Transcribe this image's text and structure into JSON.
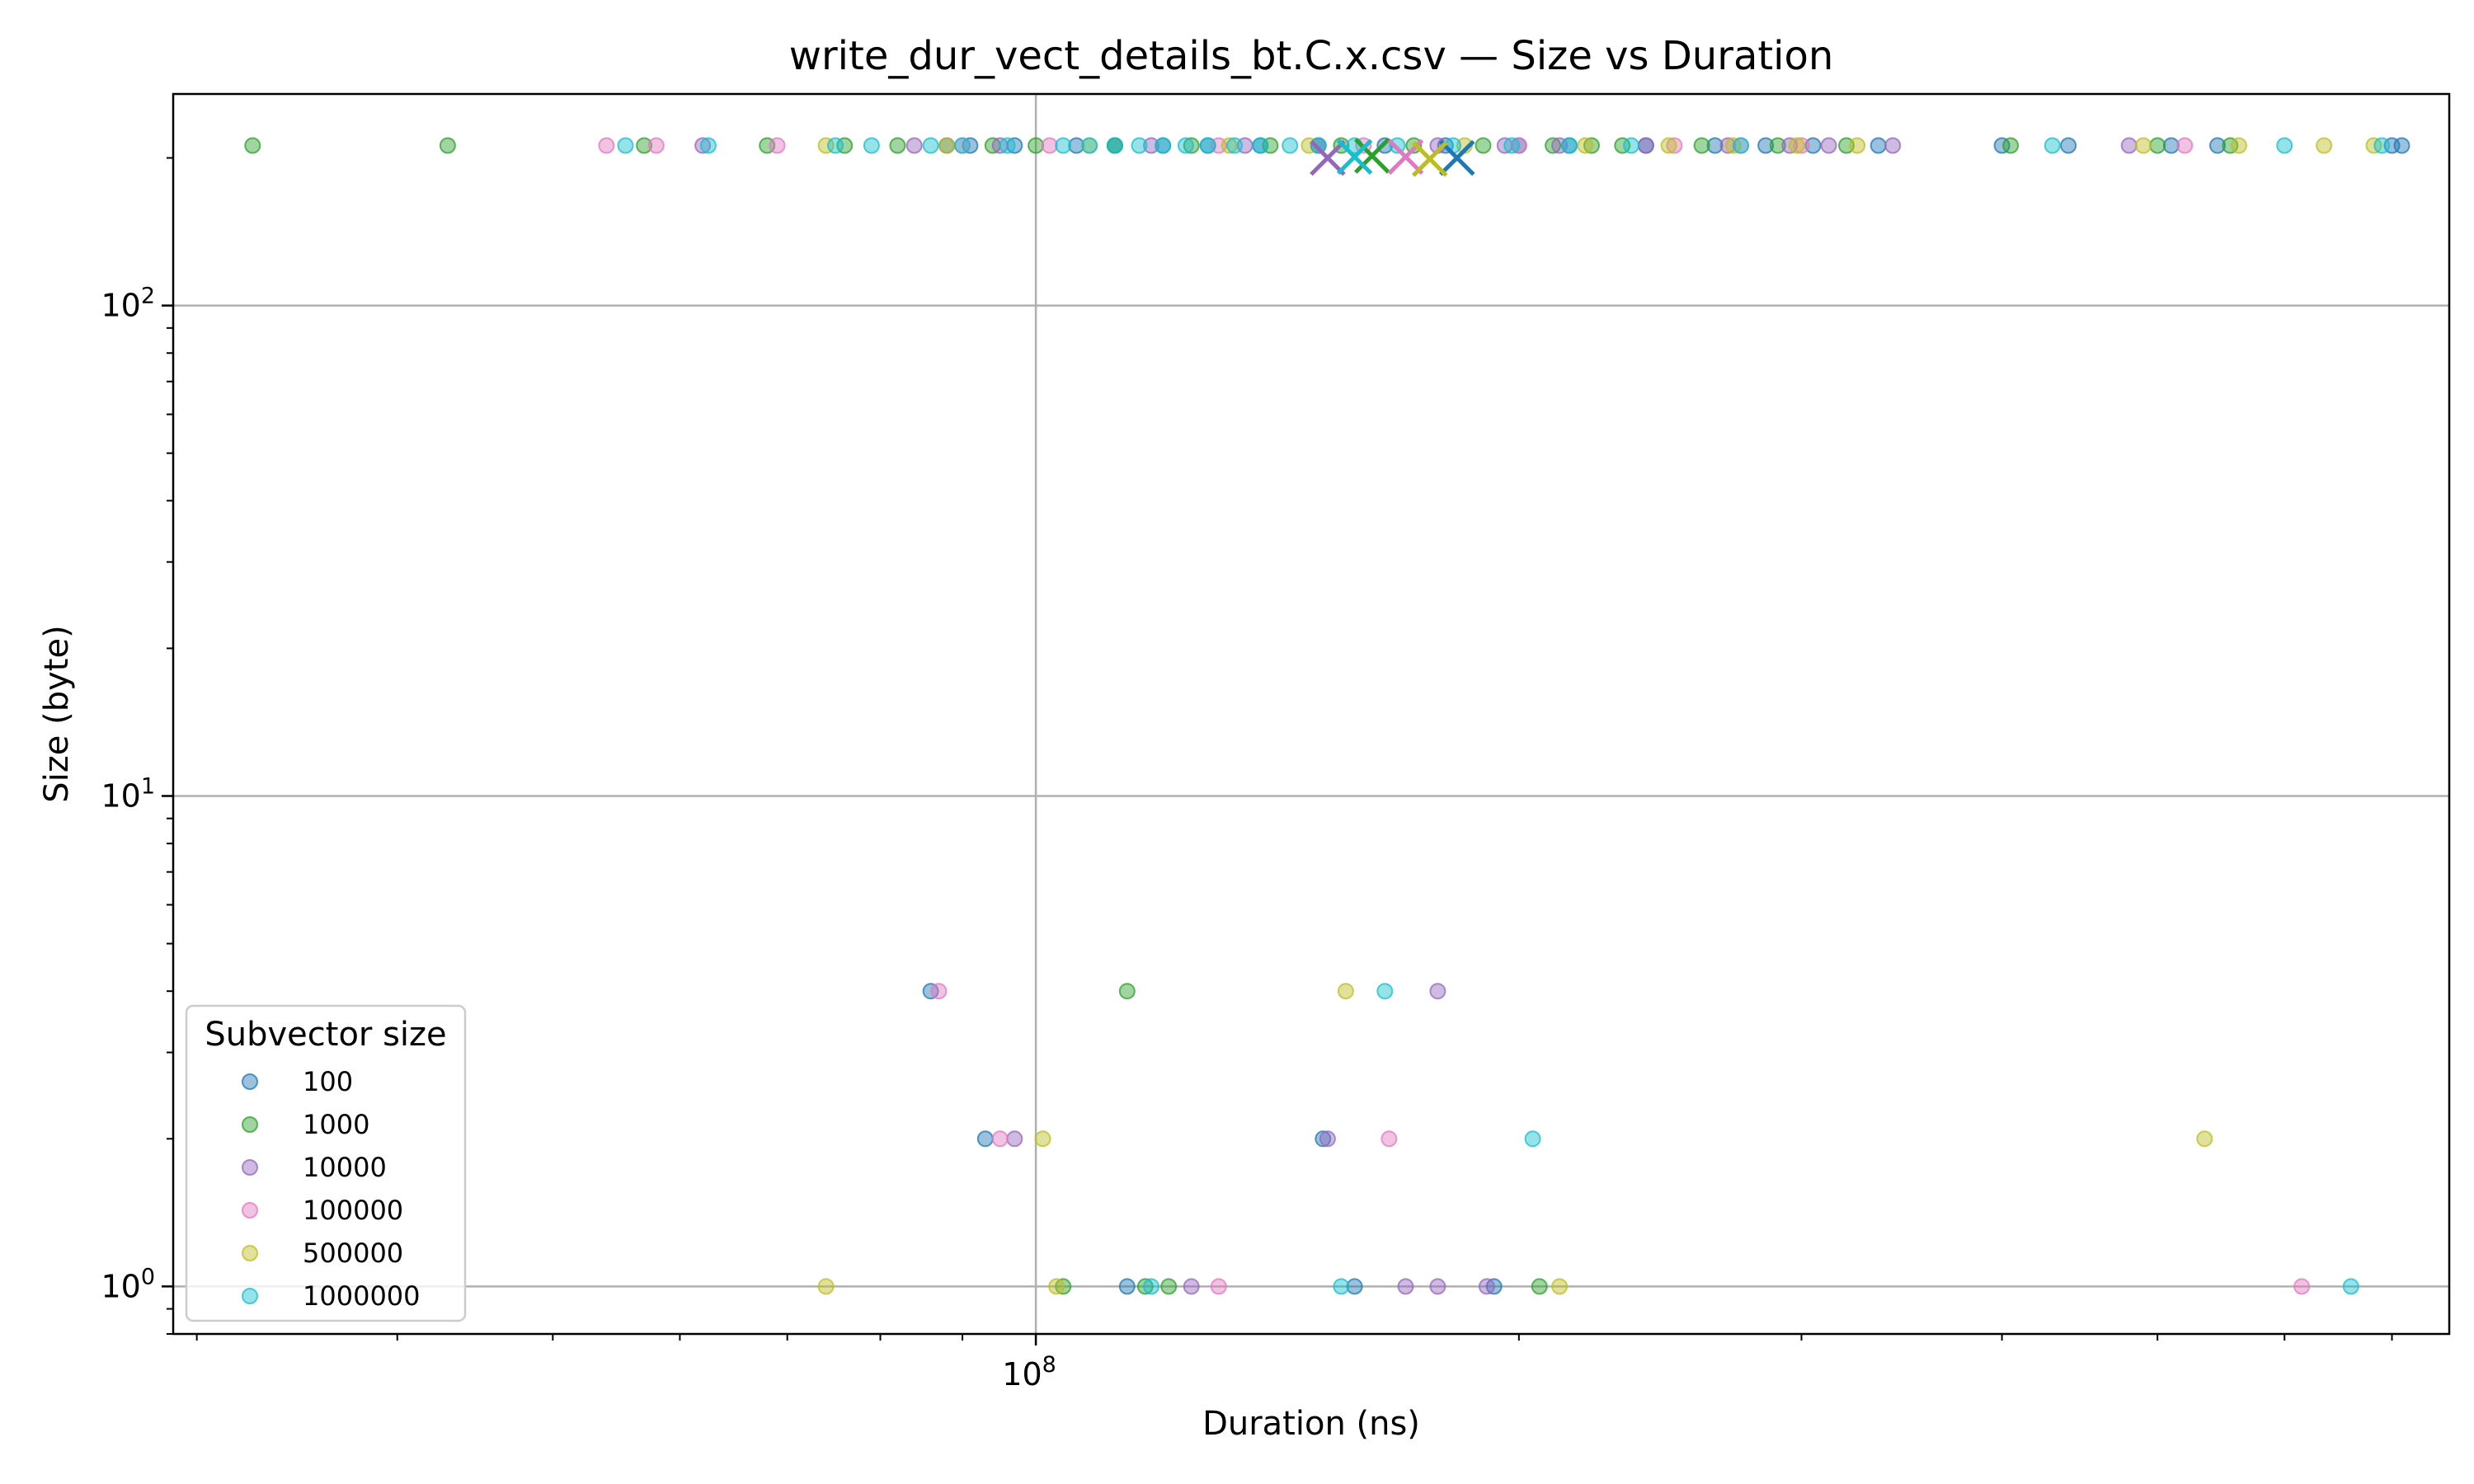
{
  "chart_data": {
    "type": "scatter",
    "title": "write_dur_vect_details_bt.C.x.csv — Size vs Duration",
    "xlabel": "Duration (ns)",
    "ylabel": "Size (byte)",
    "xscale": "log",
    "yscale": "log",
    "xlim": [
      29000000,
      760000000
    ],
    "ylim": [
      0.8,
      270
    ],
    "x_major_ticks": [
      {
        "value": 100000000,
        "base": "10",
        "exp": "8"
      }
    ],
    "y_major_ticks": [
      {
        "value": 1,
        "base": "10",
        "exp": "0"
      },
      {
        "value": 10,
        "base": "10",
        "exp": "1"
      },
      {
        "value": 100,
        "base": "10",
        "exp": "2"
      }
    ],
    "grid": true,
    "legend": {
      "title": "Subvector size",
      "placement": "lower-left"
    },
    "series": [
      {
        "name": "100",
        "color": "#1f77b4",
        "points": [
          [
            88000000,
            212
          ],
          [
            91000000,
            212
          ],
          [
            97000000,
            212
          ],
          [
            106000000,
            212
          ],
          [
            112000000,
            212
          ],
          [
            120000000,
            212
          ],
          [
            128000000,
            212
          ],
          [
            138000000,
            212
          ],
          [
            150000000,
            212
          ],
          [
            165000000,
            212
          ],
          [
            180000000,
            212
          ],
          [
            200000000,
            212
          ],
          [
            215000000,
            212
          ],
          [
            240000000,
            212
          ],
          [
            265000000,
            212
          ],
          [
            285000000,
            212
          ],
          [
            305000000,
            212
          ],
          [
            335000000,
            212
          ],
          [
            400000000,
            212
          ],
          [
            440000000,
            212
          ],
          [
            510000000,
            212
          ],
          [
            545000000,
            212
          ],
          [
            700000000,
            212
          ],
          [
            710000000,
            212
          ],
          [
            86000000,
            4
          ],
          [
            93000000,
            2
          ],
          [
            151000000,
            2
          ],
          [
            114000000,
            1
          ],
          [
            158000000,
            1
          ],
          [
            193000000,
            1
          ]
        ],
        "mean": [
          183000000,
          200
        ]
      },
      {
        "name": "1000",
        "color": "#2ca02c",
        "points": [
          [
            32500000,
            212
          ],
          [
            43000000,
            212
          ],
          [
            57000000,
            212
          ],
          [
            68000000,
            212
          ],
          [
            76000000,
            212
          ],
          [
            82000000,
            212
          ],
          [
            94000000,
            212
          ],
          [
            100000000,
            212
          ],
          [
            112000000,
            212
          ],
          [
            125000000,
            212
          ],
          [
            140000000,
            212
          ],
          [
            155000000,
            212
          ],
          [
            172000000,
            212
          ],
          [
            190000000,
            212
          ],
          [
            210000000,
            212
          ],
          [
            222000000,
            212
          ],
          [
            232000000,
            212
          ],
          [
            260000000,
            212
          ],
          [
            290000000,
            212
          ],
          [
            320000000,
            212
          ],
          [
            405000000,
            212
          ],
          [
            500000000,
            212
          ],
          [
            555000000,
            212
          ],
          [
            114000000,
            4
          ],
          [
            104000000,
            1
          ],
          [
            117000000,
            1
          ],
          [
            121000000,
            1
          ],
          [
            206000000,
            1
          ]
        ],
        "mean": [
          162000000,
          202
        ]
      },
      {
        "name": "10000",
        "color": "#9467bd",
        "points": [
          [
            62000000,
            212
          ],
          [
            84000000,
            212
          ],
          [
            95000000,
            212
          ],
          [
            118000000,
            212
          ],
          [
            135000000,
            212
          ],
          [
            150000000,
            212
          ],
          [
            178000000,
            212
          ],
          [
            196000000,
            212
          ],
          [
            212000000,
            212
          ],
          [
            240000000,
            212
          ],
          [
            270000000,
            212
          ],
          [
            295000000,
            212
          ],
          [
            312000000,
            212
          ],
          [
            342000000,
            212
          ],
          [
            480000000,
            212
          ],
          [
            178000000,
            4
          ],
          [
            97000000,
            2
          ],
          [
            152000000,
            2
          ],
          [
            125000000,
            1
          ],
          [
            170000000,
            1
          ],
          [
            178000000,
            1
          ],
          [
            191000000,
            1
          ]
        ],
        "mean": [
          152000000,
          200
        ]
      },
      {
        "name": "100000",
        "color": "#e377c2",
        "points": [
          [
            54000000,
            212
          ],
          [
            58000000,
            212
          ],
          [
            69000000,
            212
          ],
          [
            90000000,
            212
          ],
          [
            102000000,
            212
          ],
          [
            130000000,
            212
          ],
          [
            160000000,
            212
          ],
          [
            200000000,
            212
          ],
          [
            250000000,
            212
          ],
          [
            275000000,
            212
          ],
          [
            300000000,
            212
          ],
          [
            520000000,
            212
          ],
          [
            87000000,
            4
          ],
          [
            95000000,
            2
          ],
          [
            166000000,
            2
          ],
          [
            130000000,
            1
          ],
          [
            615000000,
            1
          ]
        ],
        "mean": [
          170000000,
          201
        ]
      },
      {
        "name": "500000",
        "color": "#bcbd22",
        "points": [
          [
            74000000,
            212
          ],
          [
            88000000,
            212
          ],
          [
            108000000,
            212
          ],
          [
            132000000,
            212
          ],
          [
            148000000,
            212
          ],
          [
            185000000,
            212
          ],
          [
            220000000,
            212
          ],
          [
            248000000,
            212
          ],
          [
            272000000,
            212
          ],
          [
            298000000,
            212
          ],
          [
            325000000,
            212
          ],
          [
            490000000,
            212
          ],
          [
            562000000,
            212
          ],
          [
            635000000,
            212
          ],
          [
            682000000,
            212
          ],
          [
            156000000,
            4
          ],
          [
            101000000,
            2
          ],
          [
            535000000,
            2
          ],
          [
            74000000,
            1
          ],
          [
            103000000,
            1
          ],
          [
            212000000,
            1
          ]
        ],
        "mean": [
          176000000,
          199
        ]
      },
      {
        "name": "1000000",
        "color": "#17becf",
        "points": [
          [
            55500000,
            212
          ],
          [
            62500000,
            212
          ],
          [
            75000000,
            212
          ],
          [
            79000000,
            212
          ],
          [
            86000000,
            212
          ],
          [
            90000000,
            212
          ],
          [
            96000000,
            212
          ],
          [
            104000000,
            212
          ],
          [
            108000000,
            212
          ],
          [
            112000000,
            212
          ],
          [
            116000000,
            212
          ],
          [
            120000000,
            212
          ],
          [
            124000000,
            212
          ],
          [
            128000000,
            212
          ],
          [
            133000000,
            212
          ],
          [
            138000000,
            212
          ],
          [
            144000000,
            212
          ],
          [
            150000000,
            212
          ],
          [
            158000000,
            212
          ],
          [
            168000000,
            212
          ],
          [
            182000000,
            212
          ],
          [
            198000000,
            212
          ],
          [
            215000000,
            212
          ],
          [
            235000000,
            212
          ],
          [
            275000000,
            212
          ],
          [
            430000000,
            212
          ],
          [
            600000000,
            212
          ],
          [
            690000000,
            212
          ],
          [
            165000000,
            4
          ],
          [
            204000000,
            2
          ],
          [
            118000000,
            1
          ],
          [
            155000000,
            1
          ],
          [
            660000000,
            1
          ]
        ],
        "mean": [
          158000000,
          201
        ]
      }
    ]
  }
}
